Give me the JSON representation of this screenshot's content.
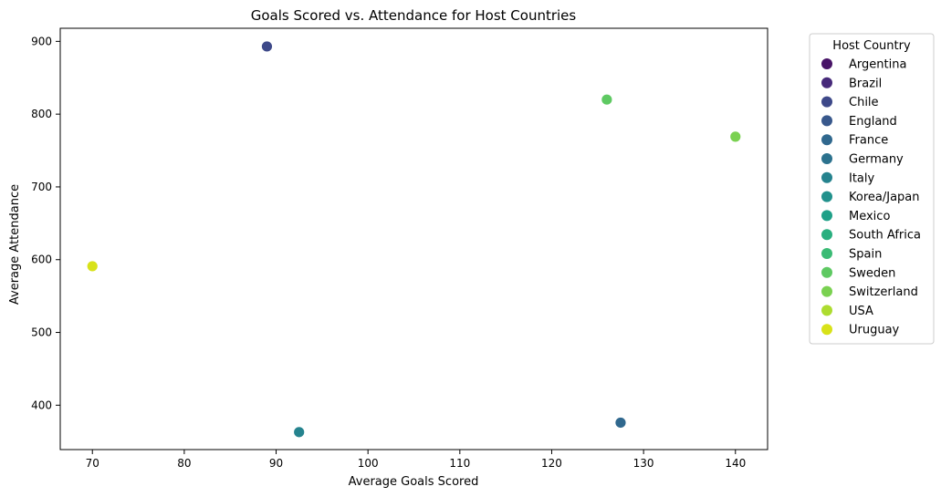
{
  "chart_data": {
    "type": "scatter",
    "title": "Goals Scored vs. Attendance for Host Countries",
    "xlabel": "Average Goals Scored",
    "ylabel": "Average Attendance",
    "xlim": [
      66.5,
      143.5
    ],
    "ylim": [
      339,
      918
    ],
    "xticks": [
      70,
      80,
      90,
      100,
      110,
      120,
      130,
      140
    ],
    "yticks": [
      400,
      500,
      600,
      700,
      800,
      900
    ],
    "grid": false,
    "legend": {
      "title": "Host Country",
      "placement": "outside-right",
      "entries": [
        {
          "name": "Argentina",
          "color": "#481467"
        },
        {
          "name": "Brazil",
          "color": "#472a7a"
        },
        {
          "name": "Chile",
          "color": "#3e4989"
        },
        {
          "name": "England",
          "color": "#38588c"
        },
        {
          "name": "France",
          "color": "#30688e"
        },
        {
          "name": "Germany",
          "color": "#2c728e"
        },
        {
          "name": "Italy",
          "color": "#25838e"
        },
        {
          "name": "Korea/Japan",
          "color": "#21918c"
        },
        {
          "name": "Mexico",
          "color": "#1fa088"
        },
        {
          "name": "South Africa",
          "color": "#29af7f"
        },
        {
          "name": "Spain",
          "color": "#3bbb75"
        },
        {
          "name": "Sweden",
          "color": "#5ec962"
        },
        {
          "name": "Switzerland",
          "color": "#7ad151"
        },
        {
          "name": "USA",
          "color": "#addc30"
        },
        {
          "name": "Uruguay",
          "color": "#d8e219"
        }
      ]
    },
    "points": [
      {
        "country": "Chile",
        "x": 89,
        "y": 893
      },
      {
        "country": "Sweden",
        "x": 126,
        "y": 820
      },
      {
        "country": "Switzerland",
        "x": 140,
        "y": 769
      },
      {
        "country": "Uruguay",
        "x": 70,
        "y": 591
      },
      {
        "country": "France",
        "x": 127.5,
        "y": 376
      },
      {
        "country": "Italy",
        "x": 92.5,
        "y": 363
      }
    ]
  }
}
